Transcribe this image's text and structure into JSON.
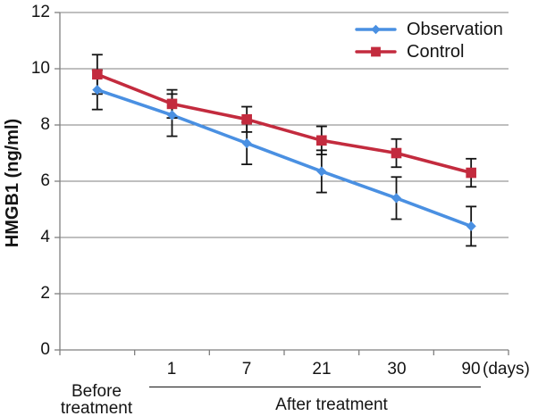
{
  "chart_data": {
    "type": "line",
    "title": "",
    "ylabel": "HMGB1 (ng/ml)",
    "x_unit_label": "(days)",
    "categories": [
      "Before treatment",
      "1",
      "7",
      "21",
      "30",
      "90"
    ],
    "x_tick_labels": [
      "",
      "1",
      "7",
      "21",
      "30",
      "90"
    ],
    "group_labels": {
      "before": "Before\ntreatment",
      "after": "After treatment"
    },
    "ylim": [
      0,
      12
    ],
    "yticks": [
      0,
      2,
      4,
      6,
      8,
      10,
      12
    ],
    "grid": true,
    "legend_position": "top-right",
    "error_bars": true,
    "series": [
      {
        "name": "Observation",
        "color": "#4A90E2",
        "marker": "diamond",
        "values": [
          9.25,
          8.35,
          7.35,
          6.35,
          5.4,
          4.4
        ],
        "errors": [
          0.7,
          0.75,
          0.75,
          0.75,
          0.75,
          0.7
        ]
      },
      {
        "name": "Control",
        "color": "#C32B3E",
        "marker": "square",
        "values": [
          9.8,
          8.75,
          8.2,
          7.45,
          7.0,
          6.3
        ],
        "errors": [
          0.7,
          0.5,
          0.45,
          0.5,
          0.5,
          0.5
        ]
      }
    ],
    "style": {
      "grid_color": "#7f7f7f",
      "axis_color": "#7f7f7f",
      "error_bar_color": "#141414",
      "text_color": "#141414",
      "background": "#ffffff"
    }
  }
}
